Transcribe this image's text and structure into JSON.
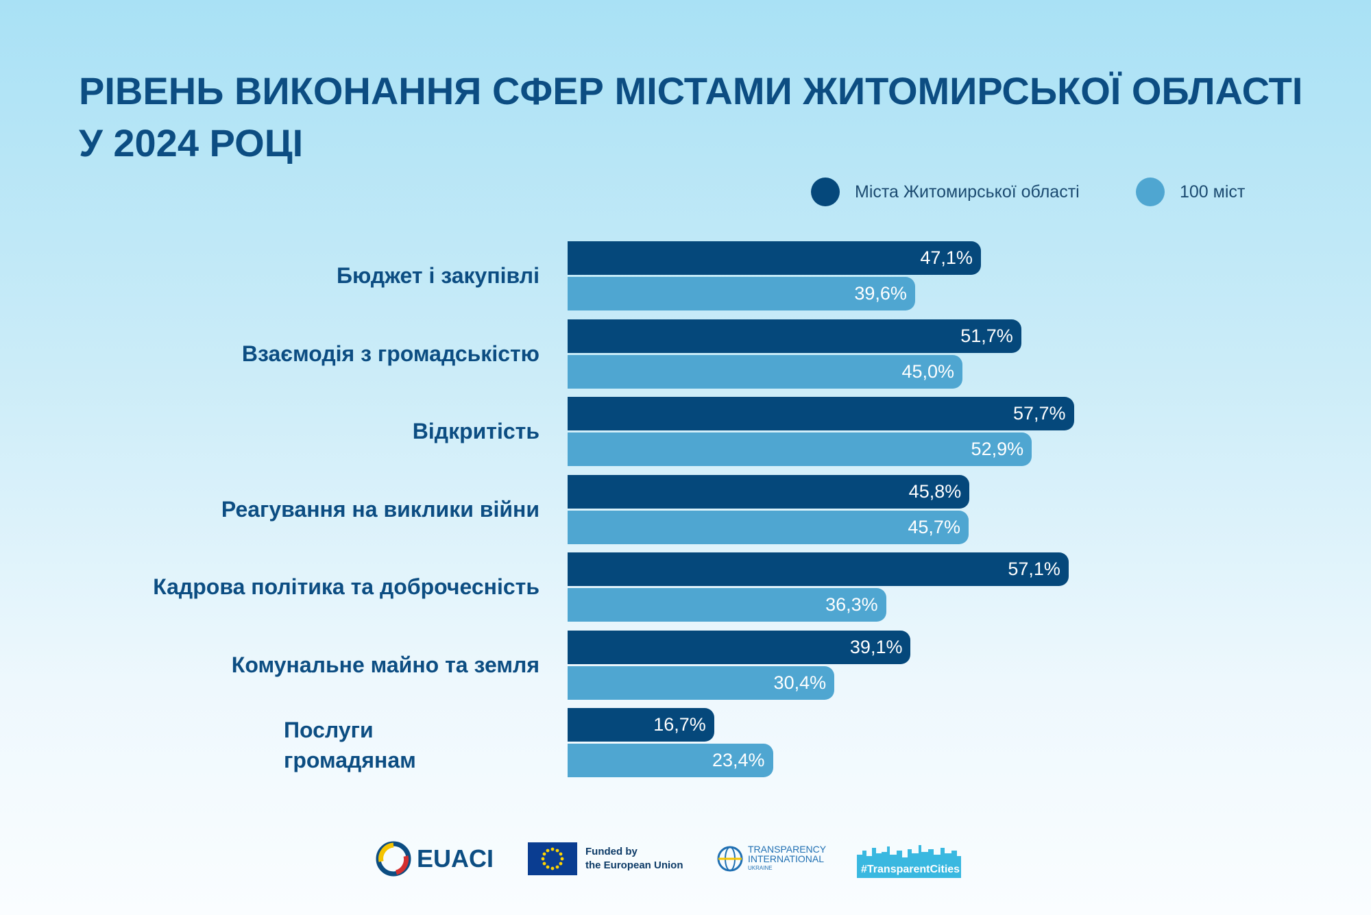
{
  "chart_data": {
    "type": "bar",
    "orientation": "horizontal",
    "title": [
      "РІВЕНЬ ВИКОНАННЯ СФЕР МІСТАМИ ЖИТОМИРСЬКОЇ ОБЛАСТІ",
      "У 2024 РОЦІ"
    ],
    "categories": [
      "Бюджет і закупівлі",
      "Взаємодія з громадськістю",
      "Відкритість",
      "Реагування на виклики війни",
      "Кадрова політика та доброчесність",
      "Комунальне майно та земля",
      "Послуги громадянам"
    ],
    "series": [
      {
        "name": "Міста Житомирської області",
        "color": "#05487b",
        "values": [
          47.1,
          51.7,
          57.7,
          45.8,
          57.1,
          39.1,
          16.7
        ],
        "labels": [
          "47,1%",
          "51,7%",
          "57,7%",
          "45,8%",
          "57,1%",
          "39,1%",
          "16,7%"
        ]
      },
      {
        "name": "100 міст",
        "color": "#4fa6d1",
        "values": [
          39.6,
          45.0,
          52.9,
          45.7,
          36.3,
          30.4,
          23.4
        ],
        "labels": [
          "39,6%",
          "45,0%",
          "52,9%",
          "45,7%",
          "36,3%",
          "30,4%",
          "23,4%"
        ]
      }
    ],
    "legend": "top-right",
    "grid": false
  },
  "footer": {
    "euaci_logo": "EUACI",
    "eu_funded": [
      "Funded by",
      "the European Union"
    ],
    "ti_logo": [
      "TRANSPARENCY",
      "INTERNATIONAL",
      "UKRAINE"
    ],
    "tc_logo": "#TransparentCities"
  },
  "icons": {
    "eu_flag": "eu-flag-icon",
    "euaci": "euaci-emblem-icon",
    "ti": "ti-globe-icon",
    "tc": "city-skyline-icon"
  }
}
